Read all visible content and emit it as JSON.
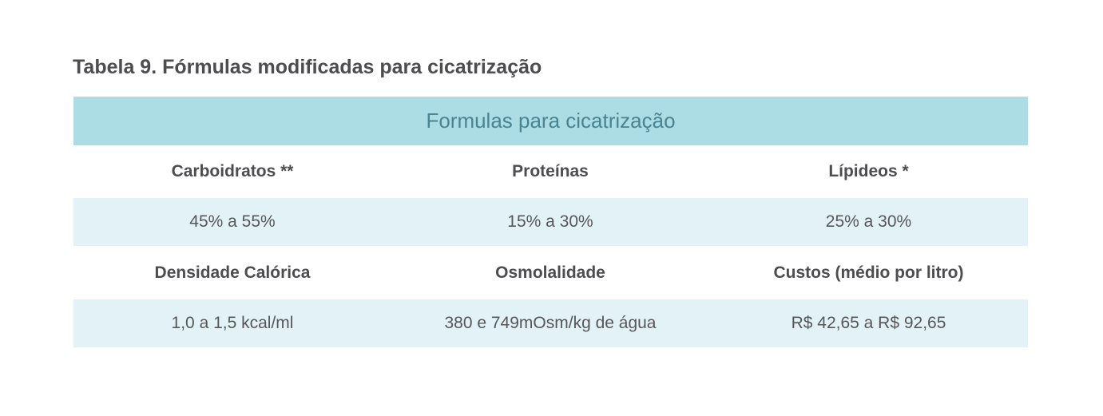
{
  "caption": "Tabela 9. Fórmulas modificadas para cicatrização",
  "table": {
    "title": "Formulas para cicatrização",
    "rows": [
      {
        "headers": [
          "Carboidratos **",
          "Proteínas",
          "Lípideos *"
        ],
        "values": [
          "45% a 55%",
          "15% a 30%",
          "25% a 30%"
        ]
      },
      {
        "headers": [
          "Densidade Calórica",
          "Osmolalidade",
          "Custos (médio por litro)"
        ],
        "values": [
          "1,0 a 1,5 kcal/ml",
          "380 e 749mOsm/kg de água",
          "R$ 42,65 a R$ 92,65"
        ]
      }
    ]
  },
  "colors": {
    "title_band": "#acdde4",
    "title_text": "#4a8391",
    "value_band": "#e2f2f7"
  }
}
